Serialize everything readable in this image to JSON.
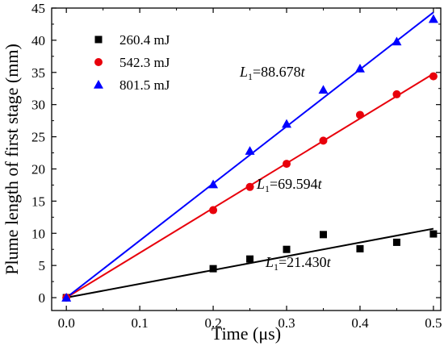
{
  "chart_data": {
    "type": "scatter",
    "xlabel": "Time (μs)",
    "ylabel": "Plume length of first stage (mm)",
    "xlim": [
      -0.02,
      0.51
    ],
    "ylim": [
      -2,
      45
    ],
    "xticks": [
      0.0,
      0.1,
      0.2,
      0.3,
      0.4,
      0.5
    ],
    "xtick_labels": [
      "0.0",
      "0.1",
      "0.2",
      "0.3",
      "0.4",
      "0.5"
    ],
    "yticks": [
      0,
      5,
      10,
      15,
      20,
      25,
      30,
      35,
      40,
      45
    ],
    "ytick_labels": [
      "0",
      "5",
      "10",
      "15",
      "20",
      "25",
      "30",
      "35",
      "40",
      "45"
    ],
    "grid": false,
    "legend_position": "top-left",
    "series": [
      {
        "name": "260.4 mJ",
        "marker": "square",
        "color": "#000000",
        "x": [
          0.0,
          0.2,
          0.25,
          0.3,
          0.35,
          0.4,
          0.45,
          0.5
        ],
        "y": [
          0.0,
          4.5,
          6.0,
          7.5,
          9.8,
          7.6,
          8.6,
          9.9
        ],
        "fit_slope": 21.43
      },
      {
        "name": "542.3 mJ",
        "marker": "circle",
        "color": "#e8000b",
        "x": [
          0.0,
          0.2,
          0.25,
          0.3,
          0.35,
          0.4,
          0.45,
          0.5
        ],
        "y": [
          0.0,
          13.6,
          17.2,
          20.8,
          24.4,
          28.4,
          31.6,
          34.4
        ],
        "fit_slope": 69.594
      },
      {
        "name": "801.5 mJ",
        "marker": "triangle",
        "color": "#0000ff",
        "x": [
          0.0,
          0.2,
          0.25,
          0.3,
          0.35,
          0.4,
          0.45,
          0.5
        ],
        "y": [
          0.0,
          17.6,
          22.8,
          27.0,
          32.3,
          35.6,
          39.8,
          43.3
        ],
        "fit_slope": 88.678
      }
    ],
    "annotations": [
      {
        "series": 2,
        "prefix": "L",
        "sub": "1",
        "text": "=88.678",
        "var": "t"
      },
      {
        "series": 1,
        "prefix": "L",
        "sub": "1",
        "text": "=69.594",
        "var": "t"
      },
      {
        "series": 0,
        "prefix": "L",
        "sub": "1",
        "text": "=21.430",
        "var": "t"
      }
    ]
  }
}
